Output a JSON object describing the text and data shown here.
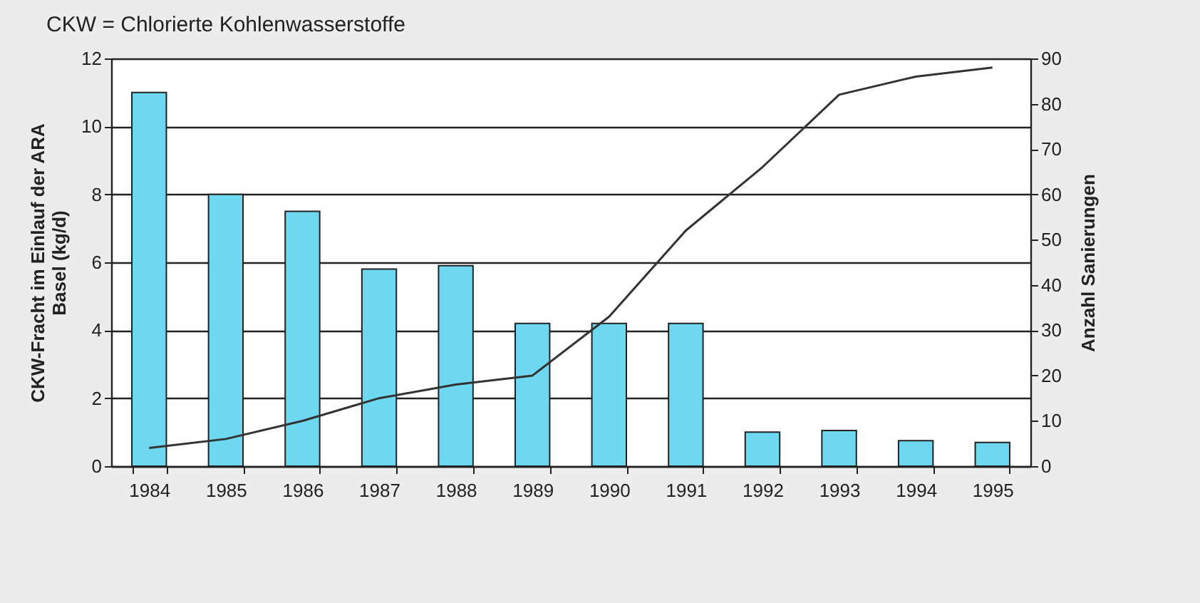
{
  "chart_data": {
    "type": "bar",
    "title": "CKW = Chlorierte Kohlenwasserstoffe",
    "categories": [
      "1984",
      "1985",
      "1986",
      "1987",
      "1988",
      "1989",
      "1990",
      "1991",
      "1992",
      "1993",
      "1994",
      "1995"
    ],
    "series": [
      {
        "color": "#6dd8f0",
        "values": [
          11,
          8,
          7.5,
          5.8,
          5.9,
          4.2,
          4.2,
          4.2,
          1.0,
          1.05,
          0.75,
          0.7
        ]
      },
      {
        "type": "line",
        "axis": "y2",
        "color": "#333333",
        "values": [
          4,
          6,
          10,
          15,
          18,
          20,
          33,
          52,
          66,
          82,
          86,
          88
        ]
      }
    ],
    "ylabel": "CKW-Fracht im Einlauf der ARA\nBasel (kg/d)",
    "y2label": "Anzahl Sanierungen",
    "ylim": [
      0,
      12
    ],
    "yticks": [
      0,
      2,
      4,
      6,
      8,
      10,
      12
    ],
    "y2lim": [
      0,
      90
    ],
    "y2ticks": [
      0,
      10,
      20,
      30,
      40,
      50,
      60,
      70,
      80,
      90
    ],
    "grid": "y",
    "marker": "none",
    "line_style": "solid"
  }
}
